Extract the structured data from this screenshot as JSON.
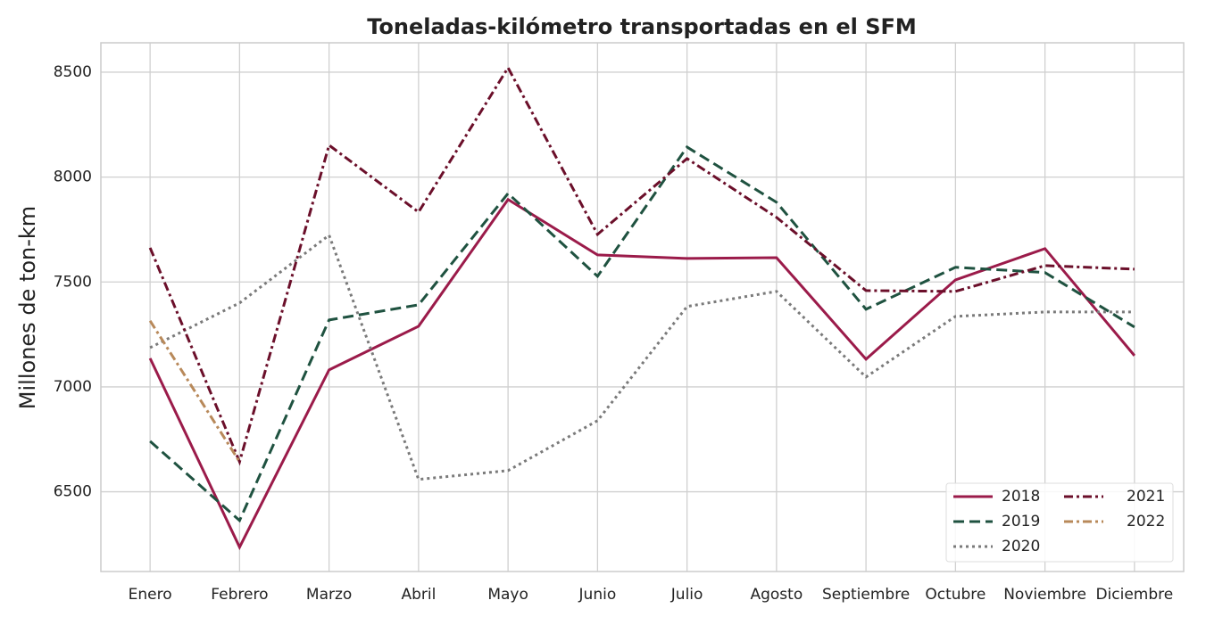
{
  "chart_data": {
    "type": "line",
    "title": "Toneladas-kilómetro transportadas en el SFM",
    "y_label": "Millones de ton-km",
    "categories": [
      "Enero",
      "Febrero",
      "Marzo",
      "Abril",
      "Mayo",
      "Junio",
      "Julio",
      "Agosto",
      "Septiembre",
      "Octubre",
      "Noviembre",
      "Diciembre"
    ],
    "series": [
      {
        "name": "2018",
        "color": "#9b1b4a",
        "dash": "solid",
        "values": [
          7136,
          6236,
          7081,
          7289,
          7893,
          7629,
          7612,
          7616,
          7132,
          7510,
          7659,
          7149
        ]
      },
      {
        "name": "2019",
        "color": "#1f5240",
        "dash": "dashed",
        "values": [
          6741,
          6363,
          7319,
          7391,
          7922,
          7527,
          8143,
          7880,
          7370,
          7570,
          7545,
          7285
        ]
      },
      {
        "name": "2020",
        "color": "#7a7a7a",
        "dash": "dotted",
        "values": [
          7187,
          7400,
          7723,
          6559,
          6601,
          6839,
          7383,
          7455,
          7047,
          7336,
          7357,
          7357
        ]
      },
      {
        "name": "2021",
        "color": "#6b0f2a",
        "dash": "dashdot",
        "values": [
          7663,
          6643,
          8152,
          7833,
          8521,
          7727,
          8088,
          7808,
          7459,
          7455,
          7578,
          7561
        ]
      },
      {
        "name": "2022",
        "color": "#b8895a",
        "dash": "dashdot",
        "values": [
          7315,
          6643,
          null,
          null,
          null,
          null,
          null,
          null,
          null,
          null,
          null,
          null
        ]
      }
    ],
    "ylim": [
      6120,
      8640
    ],
    "yticks": [
      6500,
      7000,
      7500,
      8000,
      8500
    ],
    "grid": true,
    "legend": "lower right",
    "legend_columns": 2
  }
}
